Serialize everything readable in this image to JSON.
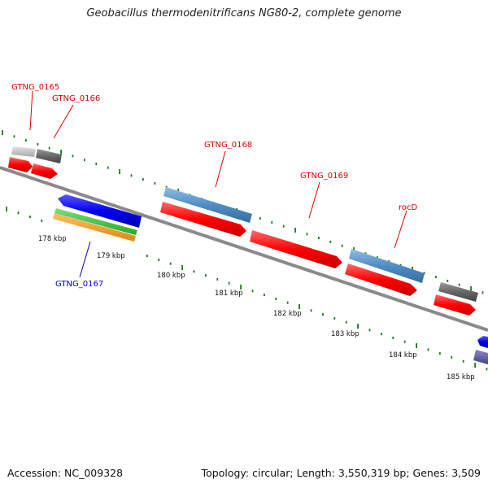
{
  "title": "Geobacillus thermodenitrificans NG80-2, complete genome",
  "footer": {
    "accession": "Accession: NC_009328",
    "summary": "Topology: circular; Length: 3,550,319 bp; Genes: 3,509"
  },
  "axis": {
    "ticks": [
      "178 kbp",
      "179 kbp",
      "180 kbp",
      "181 kbp",
      "182 kbp",
      "183 kbp",
      "184 kbp",
      "185 kbp"
    ]
  },
  "genes": {
    "gtng_0165": "GTNG_0165",
    "gtng_0166": "GTNG_0166",
    "gtng_0167": "GTNG_0167",
    "gtng_0168": "GTNG_0168",
    "gtng_0169": "GTNG_0169",
    "rocd": "rocD"
  },
  "colors": {
    "forward_feature": "#ff0000",
    "reverse_feature": "#0000ee",
    "backbone": "#888888",
    "gc_dots": "#1a7a1a",
    "blue_track": "#4f8ec4",
    "gray_track": "#666666",
    "light_gray_track": "#bbbbbb",
    "green_track": "#33bb33",
    "orange_track": "#ee9922",
    "purple_track": "#555599"
  }
}
